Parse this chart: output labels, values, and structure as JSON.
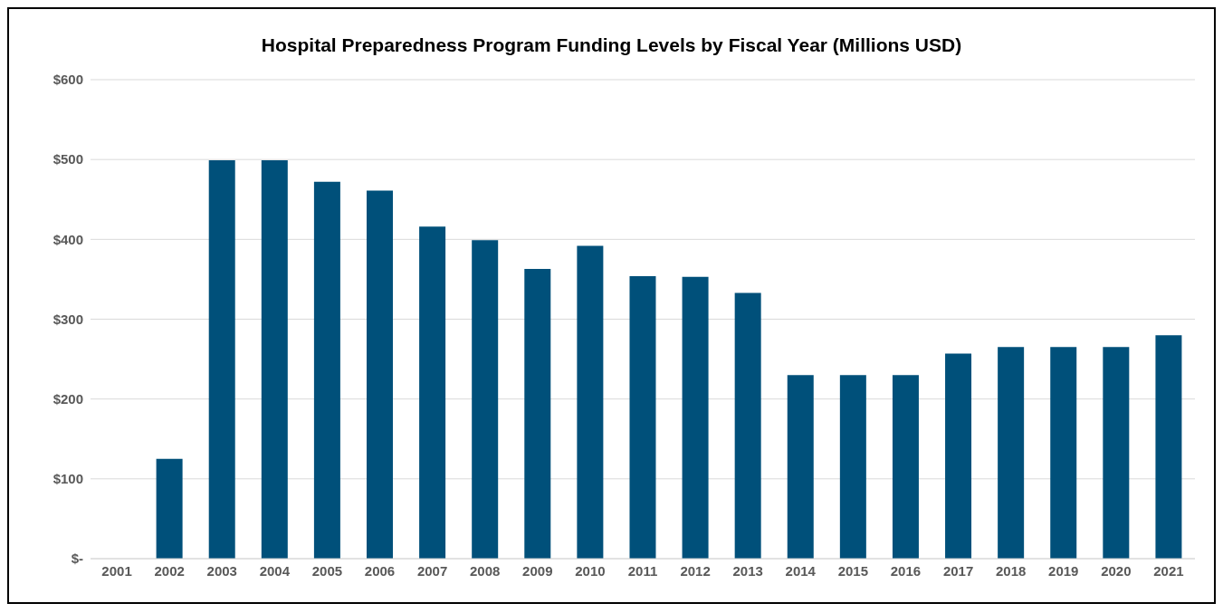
{
  "chart_data": {
    "type": "bar",
    "title": "Hospital Preparedness Program Funding Levels by Fiscal Year (Millions USD)",
    "categories": [
      "2001",
      "2002",
      "2003",
      "2004",
      "2005",
      "2006",
      "2007",
      "2008",
      "2009",
      "2010",
      "2011",
      "2012",
      "2013",
      "2014",
      "2015",
      "2016",
      "2017",
      "2018",
      "2019",
      "2020",
      "2021"
    ],
    "values": [
      0,
      125,
      499,
      499,
      472,
      461,
      416,
      399,
      363,
      392,
      354,
      353,
      333,
      230,
      230,
      230,
      257,
      265,
      265,
      265,
      280
    ],
    "color": "#00507a",
    "ylim": [
      0,
      600
    ],
    "yticks": [
      {
        "value": 0,
        "label": "$-"
      },
      {
        "value": 100,
        "label": "$100"
      },
      {
        "value": 200,
        "label": "$200"
      },
      {
        "value": 300,
        "label": "$300"
      },
      {
        "value": 400,
        "label": "$400"
      },
      {
        "value": 500,
        "label": "$500"
      },
      {
        "value": 600,
        "label": "$600"
      }
    ],
    "grid": "y"
  }
}
